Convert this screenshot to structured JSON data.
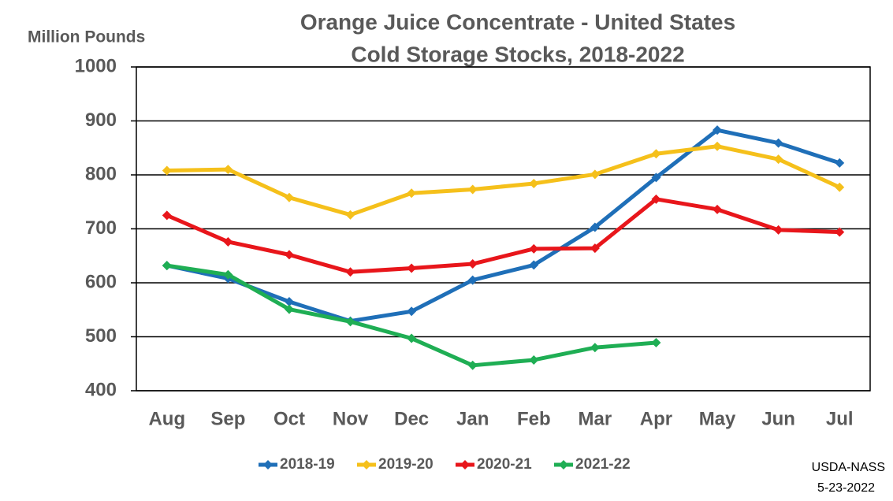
{
  "chart_data": {
    "type": "line",
    "title": "Orange Juice Concentrate - United States",
    "subtitle": "Cold Storage Stocks, 2018-2022",
    "y_label": "Million Pounds",
    "source": "USDA-NASS",
    "date": "5-23-2022",
    "categories": [
      "Aug",
      "Sep",
      "Oct",
      "Nov",
      "Dec",
      "Jan",
      "Feb",
      "Mar",
      "Apr",
      "May",
      "Jun",
      "Jul"
    ],
    "series": [
      {
        "name": "2018-19",
        "color": "#1f6fb8",
        "values": [
          632,
          608,
          565,
          529,
          547,
          605,
          633,
          703,
          795,
          883,
          859,
          822
        ]
      },
      {
        "name": "2019-20",
        "color": "#f5c01b",
        "values": [
          808,
          810,
          758,
          726,
          766,
          773,
          784,
          801,
          839,
          853,
          829,
          777
        ]
      },
      {
        "name": "2020-21",
        "color": "#e8161b",
        "values": [
          725,
          676,
          652,
          620,
          627,
          635,
          663,
          664,
          755,
          736,
          698,
          694
        ]
      },
      {
        "name": "2021-22",
        "color": "#1fae54",
        "values": [
          632,
          615,
          551,
          528,
          497,
          447,
          457,
          480,
          489,
          null,
          null,
          null
        ]
      }
    ],
    "ylim": [
      400,
      1000
    ],
    "yticks": [
      400,
      500,
      600,
      700,
      800,
      900,
      1000
    ],
    "grid": true
  }
}
